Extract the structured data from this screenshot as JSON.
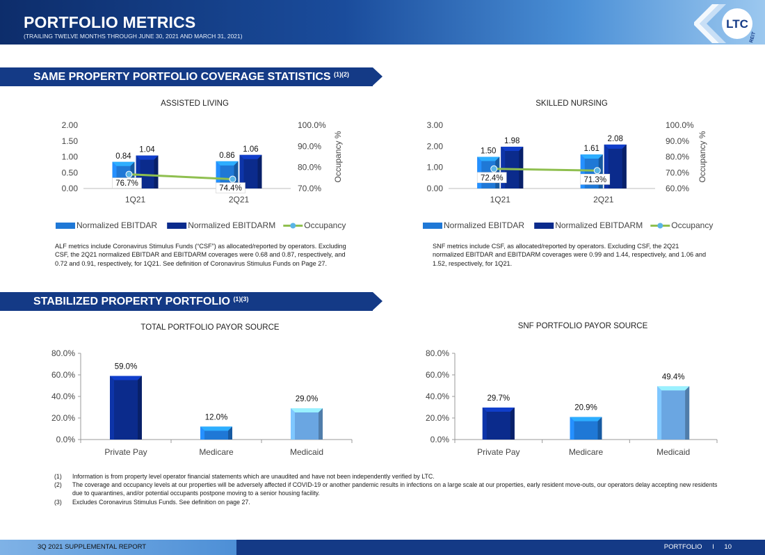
{
  "header": {
    "title": "PORTFOLIO METRICS",
    "subtitle": "(TRAILING TWELVE MONTHS THROUGH JUNE 30, 2021 AND MARCH 31, 2021)",
    "logo_text": "LTC",
    "logo_sub": "REIT"
  },
  "section1": {
    "title": "SAME PROPERTY PORTFOLIO COVERAGE STATISTICS",
    "sup": "(1)(2)"
  },
  "section2": {
    "title": "STABILIZED PROPERTY PORTFOLIO",
    "sup": "(1)(3)"
  },
  "colors": {
    "ebitdar": "#1f78d6",
    "ebitdarm": "#0b2b8c",
    "occupancy": "#8fbf4f",
    "occ_marker": "#5ab4e6"
  },
  "chart_data": [
    {
      "id": "assisted-living",
      "type": "bar",
      "title": "ASSISTED LIVING",
      "categories": [
        "1Q21",
        "2Q21"
      ],
      "series": [
        {
          "name": "Normalized EBITDAR",
          "values": [
            0.84,
            0.86
          ],
          "labels": [
            "0.84",
            "0.86"
          ]
        },
        {
          "name": "Normalized EBITDARM",
          "values": [
            1.04,
            1.06
          ],
          "labels": [
            "1.04",
            "1.06"
          ]
        }
      ],
      "line_series": {
        "name": "Occupancy",
        "values": [
          76.7,
          74.4
        ],
        "labels": [
          "76.7%",
          "74.4%"
        ]
      },
      "ylim": [
        0,
        2
      ],
      "yticks": [
        "0.00",
        "0.50",
        "1.00",
        "1.50",
        "2.00"
      ],
      "y2lim": [
        70,
        100
      ],
      "y2ticks": [
        "70.0%",
        "80.0%",
        "90.0%",
        "100.0%"
      ],
      "y2label": "Occupancy %",
      "legend": "bottom",
      "note": "ALF metrics include Coronavirus Stimulus Funds (“CSF”) as allocated/reported by operators. Excluding CSF, the 2Q21 normalized EBITDAR and EBITDARM coverages were 0.68 and 0.87, respectively, and 0.72 and 0.91, respectively, for 1Q21. See definition of Coronavirus Stimulus Funds on Page 27."
    },
    {
      "id": "skilled-nursing",
      "type": "bar",
      "title": "SKILLED NURSING",
      "categories": [
        "1Q21",
        "2Q21"
      ],
      "series": [
        {
          "name": "Normalized EBITDAR",
          "values": [
            1.5,
            1.61
          ],
          "labels": [
            "1.50",
            "1.61"
          ]
        },
        {
          "name": "Normalized EBITDARM",
          "values": [
            1.98,
            2.08
          ],
          "labels": [
            "1.98",
            "2.08"
          ]
        }
      ],
      "line_series": {
        "name": "Occupancy",
        "values": [
          72.4,
          71.3
        ],
        "labels": [
          "72.4%",
          "71.3%"
        ]
      },
      "ylim": [
        0,
        3
      ],
      "yticks": [
        "0.00",
        "1.00",
        "2.00",
        "3.00"
      ],
      "y2lim": [
        60,
        100
      ],
      "y2ticks": [
        "60.0%",
        "70.0%",
        "80.0%",
        "90.0%",
        "100.0%"
      ],
      "y2label": "Occupancy %",
      "legend": "bottom",
      "note": "SNF metrics include CSF, as allocated/reported by operators.  Excluding CSF, the 2Q21 normalized EBITDAR and EBITDARM coverages were 0.99 and 1.44, respectively, and 1.06 and 1.52, respectively, for 1Q21."
    },
    {
      "id": "total-payor",
      "type": "bar",
      "title": "TOTAL PORTFOLIO PAYOR SOURCE",
      "categories": [
        "Private Pay",
        "Medicare",
        "Medicaid"
      ],
      "values": [
        59.0,
        12.0,
        29.0
      ],
      "labels": [
        "59.0%",
        "12.0%",
        "29.0%"
      ],
      "colors": [
        "#0b2b8c",
        "#1f78d6",
        "#6aa6e2"
      ],
      "ylim": [
        0,
        80
      ],
      "yticks": [
        "0.0%",
        "20.0%",
        "40.0%",
        "60.0%",
        "80.0%"
      ]
    },
    {
      "id": "snf-payor",
      "type": "bar",
      "title": "SNF PORTFOLIO PAYOR SOURCE",
      "categories": [
        "Private Pay",
        "Medicare",
        "Medicaid"
      ],
      "values": [
        29.7,
        20.9,
        49.4
      ],
      "labels": [
        "29.7%",
        "20.9%",
        "49.4%"
      ],
      "colors": [
        "#0b2b8c",
        "#1f78d6",
        "#6aa6e2"
      ],
      "ylim": [
        0,
        80
      ],
      "yticks": [
        "0.0%",
        "20.0%",
        "40.0%",
        "60.0%",
        "80.0%"
      ]
    }
  ],
  "footnotes": [
    {
      "num": "(1)",
      "text": "Information is from property level operator financial statements which are unaudited and have not been independently verified by LTC."
    },
    {
      "num": "(2)",
      "text": "The coverage and occupancy levels at our properties will be adversely affected if COVID-19 or another pandemic results in infections on a large scale at our properties, early resident move-outs, our operators delay accepting new residents due to quarantines, and/or potential occupants postpone moving to a senior housing facility."
    },
    {
      "num": "(3)",
      "text": "Excludes Coronavirus Stimulus Funds. See definition on page 27."
    }
  ],
  "footer": {
    "left": "3Q 2021 SUPPLEMENTAL REPORT",
    "section": "PORTFOLIO",
    "separator": "I",
    "page": "10"
  }
}
